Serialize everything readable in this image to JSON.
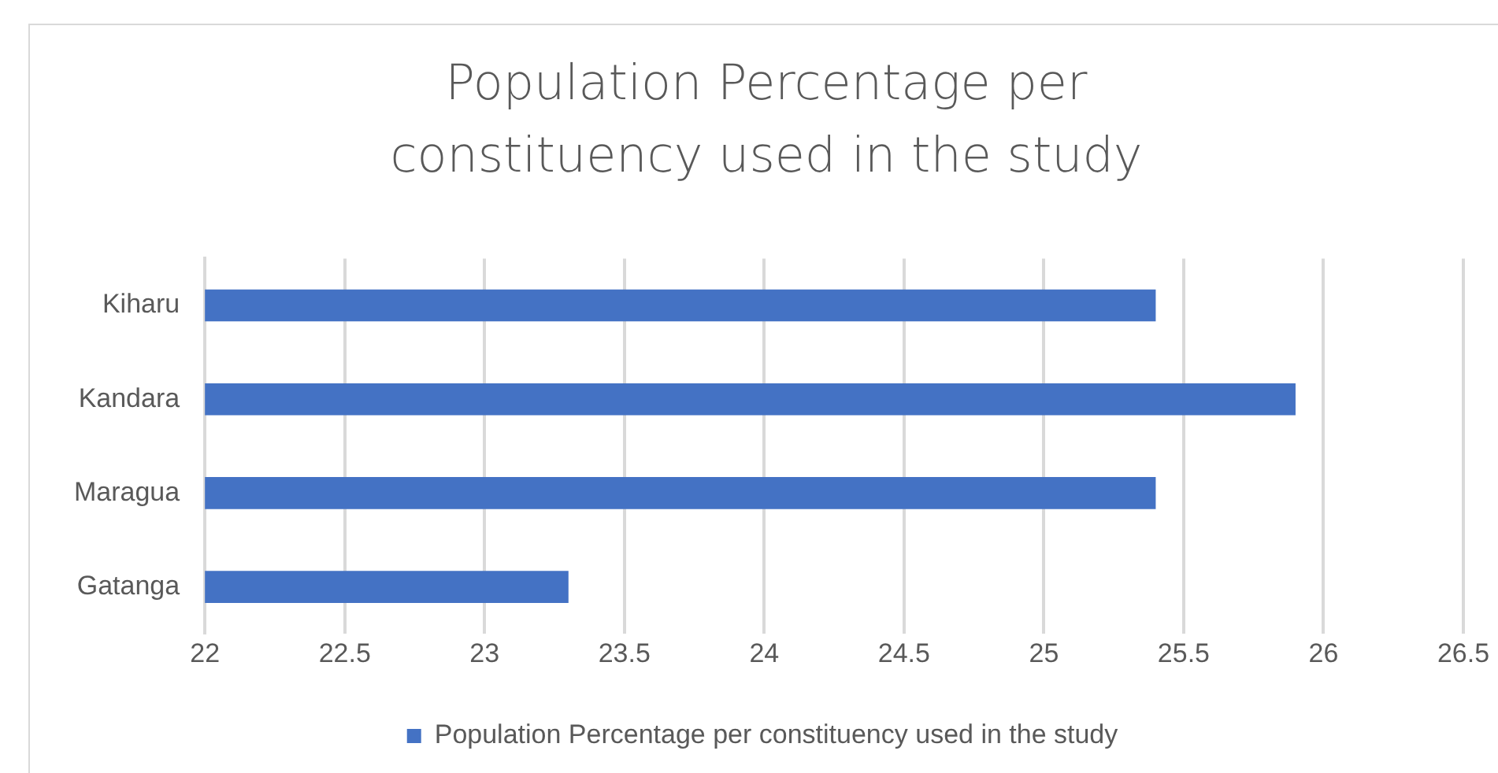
{
  "chart_data": {
    "type": "bar",
    "orientation": "horizontal",
    "title": "Population Percentage per constituency used in the study",
    "categories": [
      "Kiharu",
      "Kandara",
      "Maragua",
      "Gatanga"
    ],
    "series": [
      {
        "name": "Population Percentage per constituency used in the study",
        "color": "#4472c4",
        "values": [
          25.4,
          25.9,
          25.4,
          23.3
        ]
      }
    ],
    "xlim": [
      22,
      26.5
    ],
    "xticks": [
      22,
      22.5,
      23,
      23.5,
      24,
      24.5,
      25,
      25.5,
      26,
      26.5
    ],
    "grid": "x",
    "legend": "bottom"
  }
}
